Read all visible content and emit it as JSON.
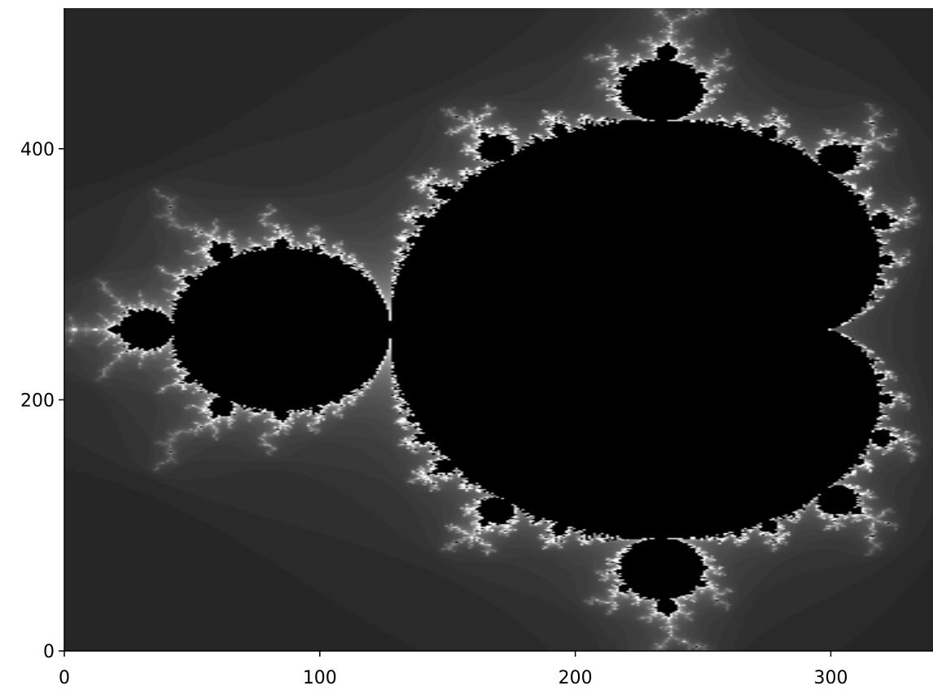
{
  "chart_data": {
    "type": "image",
    "colormap": "grays",
    "xlim": [
      0,
      340
    ],
    "ylim": [
      0,
      512
    ],
    "xticks": [
      0,
      100,
      200,
      300
    ],
    "yticks": [
      0,
      200,
      400
    ]
  }
}
